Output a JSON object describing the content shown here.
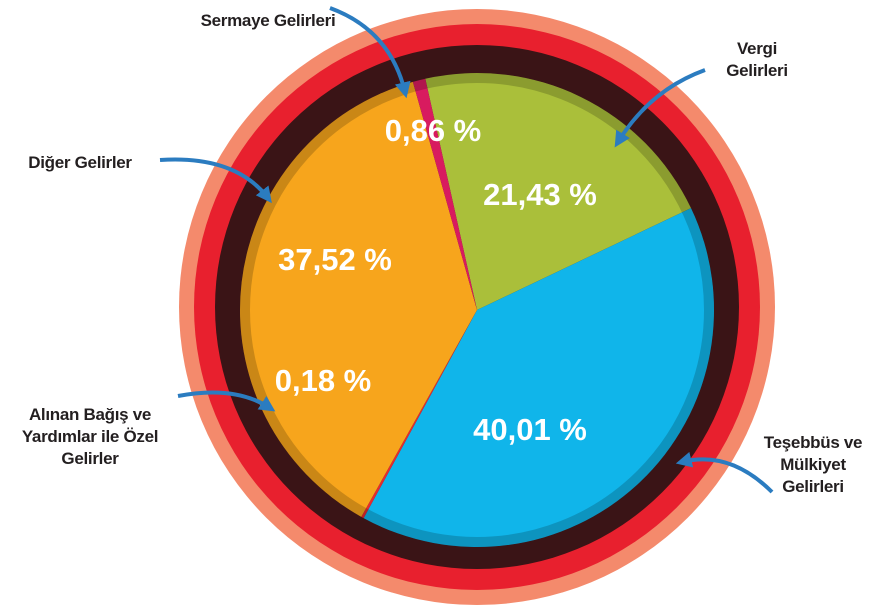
{
  "chart_data": {
    "type": "pie",
    "categories": [
      "Vergi Gelirleri",
      "Teşebbüs ve Mülkiyet Gelirleri",
      "Alınan Bağış ve Yardımlar ile Özel Gelirler",
      "Diğer Gelirler",
      "Sermaye Gelirleri"
    ],
    "values": [
      21.43,
      40.01,
      0.18,
      37.52,
      0.86
    ],
    "value_labels": [
      "21,43 %",
      "40,01 %",
      "0,18 %",
      "37,52 %",
      "0,86 %"
    ],
    "colors": [
      "#aabf3a",
      "#10b5ea",
      "#e52b2f",
      "#f7a51c",
      "#d81b5f"
    ]
  }
}
